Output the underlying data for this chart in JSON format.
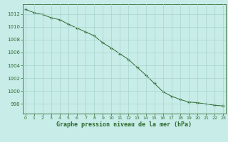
{
  "x": [
    0,
    1,
    2,
    3,
    4,
    5,
    6,
    7,
    8,
    9,
    10,
    11,
    12,
    13,
    14,
    15,
    16,
    17,
    18,
    19,
    20,
    21,
    22,
    23
  ],
  "y": [
    1012.7,
    1012.2,
    1011.9,
    1011.4,
    1011.1,
    1010.4,
    1009.8,
    1009.2,
    1008.6,
    1007.5,
    1006.7,
    1005.8,
    1004.9,
    1003.7,
    1002.5,
    1001.2,
    999.9,
    999.2,
    998.7,
    998.3,
    998.2,
    998.0,
    997.8,
    997.7
  ],
  "line_color": "#2d6a2d",
  "marker": "+",
  "marker_color": "#2d6a2d",
  "bg_color": "#c8ece8",
  "grid_color": "#a8d4ce",
  "xlabel": "Graphe pression niveau de la mer (hPa)",
  "xlabel_color": "#2d6a2d",
  "tick_color": "#2d6a2d",
  "ylim": [
    996.5,
    1013.5
  ],
  "yticks": [
    998,
    1000,
    1002,
    1004,
    1006,
    1008,
    1010,
    1012
  ],
  "xticks": [
    0,
    1,
    2,
    3,
    4,
    5,
    6,
    7,
    8,
    9,
    10,
    11,
    12,
    13,
    14,
    15,
    16,
    17,
    18,
    19,
    20,
    21,
    22,
    23
  ],
  "figsize": [
    3.2,
    2.0
  ],
  "dpi": 100
}
